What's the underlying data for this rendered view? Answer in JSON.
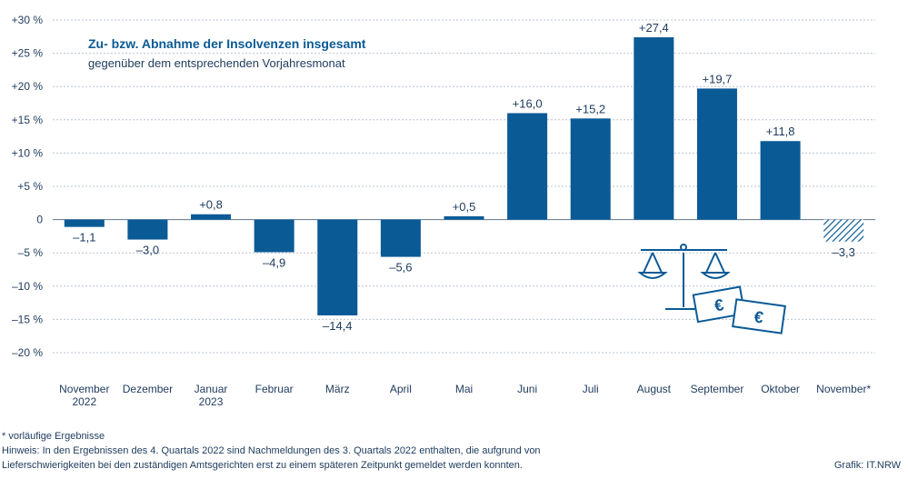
{
  "chart_data": {
    "type": "bar",
    "title": "Zu- bzw. Abnahme der Insolvenzen insgesamt",
    "subtitle": "gegenüber dem entsprechenden Vorjahresmonat",
    "categories": [
      "November\n2022",
      "Dezember",
      "Januar\n2023",
      "Februar",
      "März",
      "April",
      "Mai",
      "Juni",
      "Juli",
      "August",
      "September",
      "Oktober",
      "November*"
    ],
    "values": [
      -1.1,
      -3.0,
      0.8,
      -4.9,
      -14.4,
      -5.6,
      0.5,
      16.0,
      15.2,
      27.4,
      19.7,
      11.8,
      -3.3
    ],
    "value_labels": [
      "–1,1",
      "–3,0",
      "+0,8",
      "–4,9",
      "–14,4",
      "–5,6",
      "+0,5",
      "+16,0",
      "+15,2",
      "+27,4",
      "+19,7",
      "+11,8",
      "–3,3"
    ],
    "provisional": [
      false,
      false,
      false,
      false,
      false,
      false,
      false,
      false,
      false,
      false,
      false,
      false,
      true
    ],
    "yticks": [
      30,
      25,
      20,
      15,
      10,
      5,
      0,
      -5,
      -10,
      -15,
      -20
    ],
    "ytick_labels": [
      "+30 %",
      "+25 %",
      "+20 %",
      "+15 %",
      "+10 %",
      "+5 %",
      "0",
      "–5 %",
      "–10 %",
      "–15 %",
      "–20 %"
    ],
    "ylim": [
      -20,
      30
    ],
    "grid": true,
    "colors": {
      "bar": "#0a5a96",
      "text": "#1d3a5c",
      "title": "#0a5a96"
    }
  },
  "footnotes": {
    "note1": "* vorläufige Ergebnisse",
    "note2": "Hinweis: In den Ergebnissen des 4. Quartals 2022 sind Nachmeldungen des 3. Quartals 2022 enthalten, die aufgrund von",
    "note3": "Lieferschwierigkeiten bei den zuständigen Amtsgerichten erst zu einem späteren Zeitpunkt gemeldet werden konnten.",
    "source": "Grafik: IT.NRW"
  },
  "decoration": {
    "icons": [
      "scales-icon",
      "euro-banknote-icon"
    ],
    "currency_symbol": "€"
  }
}
